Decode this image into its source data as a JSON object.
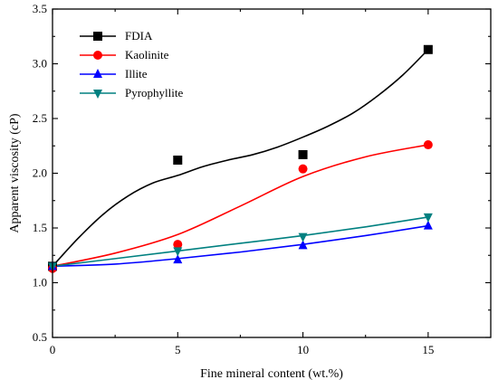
{
  "chart_data": {
    "type": "scatter",
    "title": "",
    "xlabel": "Fine mineral content (wt.%)",
    "ylabel": "Apparent viscosity (cP)",
    "xlim": [
      0,
      17.5
    ],
    "ylim": [
      0.5,
      3.5
    ],
    "xticks": [
      0,
      5,
      10,
      15
    ],
    "xtick_labels": [
      "0",
      "5",
      "10",
      "15"
    ],
    "yticks": [
      0.5,
      1.0,
      1.5,
      2.0,
      2.5,
      3.0,
      3.5
    ],
    "ytick_labels": [
      "0.5",
      "1.0",
      "1.5",
      "2.0",
      "2.5",
      "3.0",
      "3.5"
    ],
    "grid": false,
    "legend_position": "top-left",
    "series": [
      {
        "name": "FDIA",
        "color": "#000000",
        "marker": "square",
        "x": [
          0,
          5,
          10,
          15
        ],
        "y": [
          1.15,
          2.12,
          2.17,
          3.13
        ],
        "fit": {
          "x": [
            0,
            1,
            2,
            3,
            4,
            5,
            6,
            7,
            8,
            9,
            10,
            11,
            12,
            13,
            14,
            15
          ],
          "y": [
            1.15,
            1.4,
            1.62,
            1.79,
            1.91,
            1.98,
            2.06,
            2.12,
            2.17,
            2.24,
            2.33,
            2.43,
            2.55,
            2.71,
            2.9,
            3.13
          ]
        }
      },
      {
        "name": "Kaolinite",
        "color": "#ff0000",
        "marker": "circle",
        "x": [
          0,
          5,
          10,
          15
        ],
        "y": [
          1.13,
          1.35,
          2.04,
          2.26
        ],
        "fit": {
          "x": [
            0,
            2.5,
            5,
            7.5,
            10,
            12.5,
            15
          ],
          "y": [
            1.15,
            1.27,
            1.44,
            1.7,
            1.97,
            2.15,
            2.26
          ]
        }
      },
      {
        "name": "Illite",
        "color": "#0000ff",
        "marker": "triangle-up",
        "x": [
          0,
          5,
          10,
          15
        ],
        "y": [
          1.15,
          1.21,
          1.34,
          1.52
        ],
        "fit": {
          "x": [
            0,
            2.5,
            5,
            7.5,
            10,
            12.5,
            15
          ],
          "y": [
            1.15,
            1.17,
            1.22,
            1.28,
            1.35,
            1.43,
            1.52
          ]
        }
      },
      {
        "name": "Pyrophyllite",
        "color": "#008080",
        "marker": "triangle-down",
        "x": [
          0,
          5,
          10,
          15
        ],
        "y": [
          1.15,
          1.29,
          1.42,
          1.6
        ],
        "fit": {
          "x": [
            0,
            2.5,
            5,
            7.5,
            10,
            12.5,
            15
          ],
          "y": [
            1.15,
            1.22,
            1.29,
            1.36,
            1.43,
            1.51,
            1.6
          ]
        }
      }
    ]
  }
}
